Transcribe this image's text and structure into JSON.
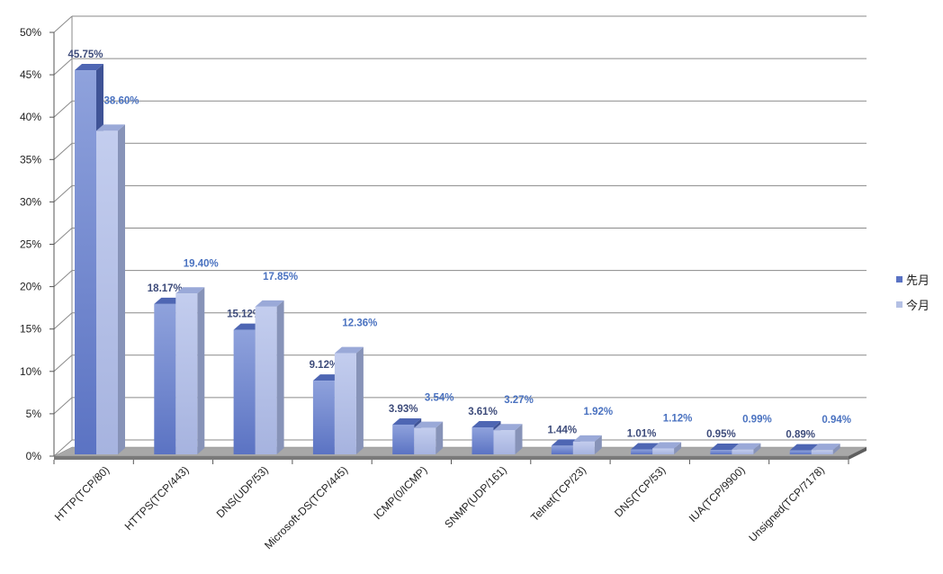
{
  "chart_data": {
    "type": "bar",
    "categories": [
      "HTTP(TCP/80)",
      "HTTPS(TCP/443)",
      "DNS(UDP/53)",
      "Microsoft-DS(TCP/445)",
      "ICMP(0/ICMP)",
      "SNMP(UDP/161)",
      "Telnet(TCP/23)",
      "DNS(TCP/53)",
      "IUA(TCP/9900)",
      "Unsigned(TCP/7178)"
    ],
    "series": [
      {
        "name": "先月",
        "values": [
          45.75,
          18.17,
          15.12,
          9.12,
          3.93,
          3.61,
          1.44,
          1.01,
          0.95,
          0.89
        ],
        "labels": [
          "45.75%",
          "18.17%",
          "15.12%",
          "9.12%",
          "3.93%",
          "3.61%",
          "1.44%",
          "1.01%",
          "0.95%",
          "0.89%"
        ],
        "color": "#6f86cf",
        "label_color": "#3d4b7a"
      },
      {
        "name": "今月",
        "values": [
          38.6,
          19.4,
          17.85,
          12.36,
          3.54,
          3.27,
          1.92,
          1.12,
          0.99,
          0.94
        ],
        "labels": [
          "38.60%",
          "19.40%",
          "17.85%",
          "12.36%",
          "3.54%",
          "3.27%",
          "1.92%",
          "1.12%",
          "0.99%",
          "0.94%"
        ],
        "color": "#b4c0e4",
        "label_color": "#4a72c0"
      }
    ],
    "yticks": [
      "0%",
      "5%",
      "10%",
      "15%",
      "20%",
      "25%",
      "30%",
      "35%",
      "40%",
      "45%",
      "50%"
    ],
    "ylim": [
      0,
      50
    ],
    "grid": true,
    "legend_position": "right",
    "title": "",
    "xlabel": "",
    "ylabel": ""
  }
}
